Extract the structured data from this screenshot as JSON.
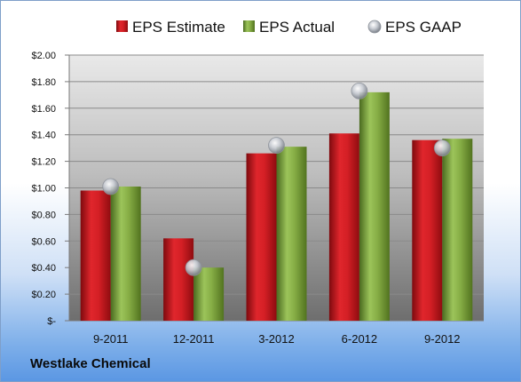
{
  "chart_data": {
    "type": "bar",
    "categories": [
      "9-2011",
      "12-2011",
      "3-2012",
      "6-2012",
      "9-2012"
    ],
    "series": [
      {
        "name": "EPS Estimate",
        "values": [
          0.98,
          0.62,
          1.26,
          1.41,
          1.36
        ],
        "color": "#c8161d"
      },
      {
        "name": "EPS Actual",
        "values": [
          1.01,
          0.4,
          1.31,
          1.72,
          1.37
        ],
        "color": "#79a03a"
      },
      {
        "name": "EPS GAAP",
        "values": [
          1.01,
          0.4,
          1.32,
          1.73,
          1.3
        ],
        "color": "#b8bcc4",
        "style": "marker"
      }
    ],
    "ylim": [
      0,
      2.0
    ],
    "yticks": [
      0,
      0.2,
      0.4,
      0.6,
      0.8,
      1.0,
      1.2,
      1.4,
      1.6,
      1.8,
      2.0
    ],
    "ytick_labels": [
      "$-",
      "$0.20",
      "$0.40",
      "$0.60",
      "$0.80",
      "$1.00",
      "$1.20",
      "$1.40",
      "$1.60",
      "$1.80",
      "$2.00"
    ],
    "grid": true,
    "legend_position": "top",
    "caption": "Westlake Chemical"
  }
}
